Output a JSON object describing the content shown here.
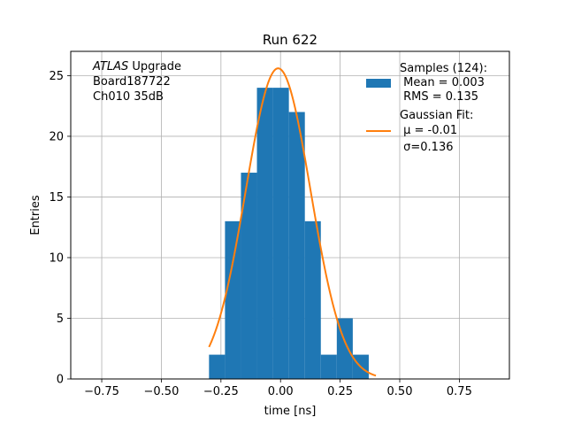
{
  "chart_data": {
    "type": "bar",
    "title": "Run 622",
    "xlabel": "time [ns]",
    "ylabel": "Entries",
    "xlim": [
      -0.88,
      0.96
    ],
    "ylim": [
      0,
      27
    ],
    "grid": true,
    "xticks": [
      {
        "value": -0.75,
        "label": "−0.75"
      },
      {
        "value": -0.5,
        "label": "−0.50"
      },
      {
        "value": -0.25,
        "label": "−0.25"
      },
      {
        "value": 0.0,
        "label": "0.00"
      },
      {
        "value": 0.25,
        "label": "0.25"
      },
      {
        "value": 0.5,
        "label": "0.50"
      },
      {
        "value": 0.75,
        "label": "0.75"
      }
    ],
    "yticks": [
      {
        "value": 0,
        "label": "0"
      },
      {
        "value": 5,
        "label": "5"
      },
      {
        "value": 10,
        "label": "10"
      },
      {
        "value": 15,
        "label": "15"
      },
      {
        "value": 20,
        "label": "20"
      },
      {
        "value": 25,
        "label": "25"
      }
    ],
    "histogram": {
      "color": "#1f77b4",
      "bin_edges": [
        -0.3,
        -0.233,
        -0.166,
        -0.099,
        -0.032,
        0.035,
        0.102,
        0.169,
        0.236,
        0.303,
        0.37,
        0.41
      ],
      "counts": [
        2,
        13,
        17,
        24,
        24,
        22,
        13,
        2,
        5,
        2,
        0
      ]
    },
    "fit": {
      "color": "#ff7f0e",
      "mu": -0.01,
      "sigma": 0.136,
      "amplitude": 25.6,
      "x_range": [
        -0.3,
        0.4
      ]
    },
    "legend": {
      "position": "top-right",
      "entries": [
        {
          "kind": "patch",
          "color": "#1f77b4",
          "lines": [
            "Samples (124):",
            " Mean = 0.003",
            " RMS = 0.135"
          ]
        },
        {
          "kind": "line",
          "color": "#ff7f0e",
          "lines": [
            "Gaussian Fit:",
            " μ = -0.01",
            " σ=0.136"
          ]
        }
      ]
    },
    "annotation": {
      "position": "top-left",
      "experiment": "ATLAS",
      "experiment_suffix": " Upgrade",
      "lines": [
        "Board187722",
        "Ch010 35dB"
      ]
    }
  }
}
